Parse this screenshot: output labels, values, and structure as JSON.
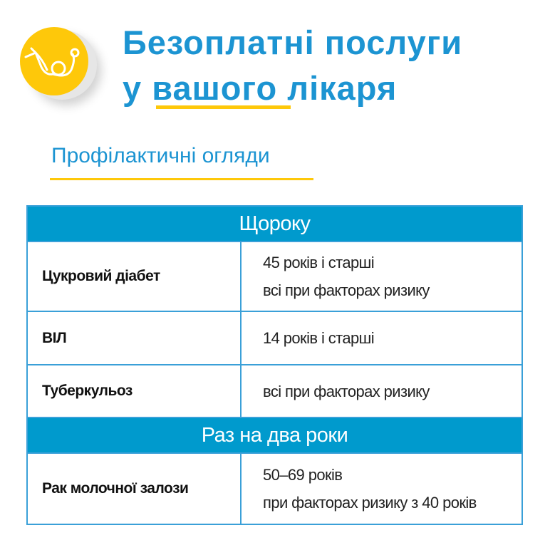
{
  "header": {
    "title_line1": "Безоплатні послуги",
    "title_prefix": "у ",
    "title_underlined": "вашого",
    "title_suffix": " лікаря",
    "icon": "stethoscope-icon"
  },
  "subtitle": "Профілактичні огляди",
  "colors": {
    "blue": "#1c94d2",
    "yellow": "#fec80a",
    "header_fill": "#009acd"
  },
  "table": {
    "sections": [
      {
        "title": "Щороку",
        "rows": [
          {
            "name": "Цукровий діабет",
            "lines": [
              "45 років і старші",
              "всі при факторах ризику"
            ]
          },
          {
            "name": "ВІЛ",
            "lines": [
              "14 років і старші"
            ]
          },
          {
            "name": "Туберкульоз",
            "lines": [
              "всі при факторах ризику"
            ]
          }
        ]
      },
      {
        "title": "Раз на два роки",
        "rows": [
          {
            "name": "Рак молочної залози",
            "lines": [
              "50–69 років",
              "при факторах ризику з 40 років"
            ]
          }
        ]
      }
    ]
  }
}
